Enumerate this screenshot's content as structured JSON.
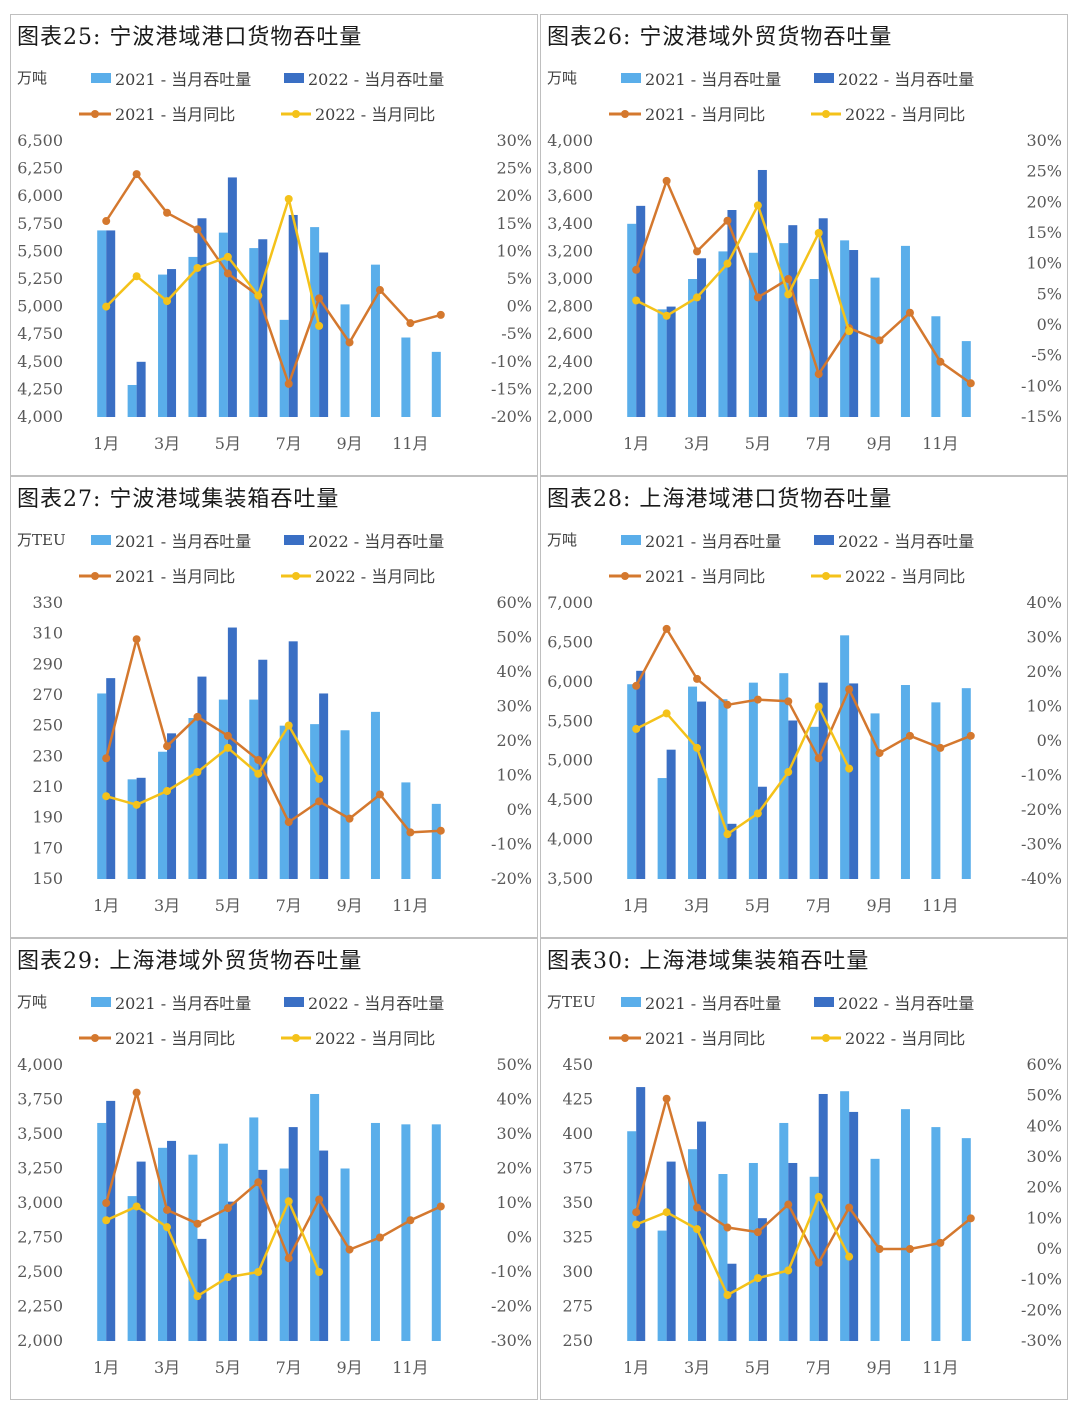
{
  "colors": {
    "bar2021": "#5aaeea",
    "bar2022": "#3a6fc4",
    "line2021": "#d4782e",
    "line2022": "#f4c21a"
  },
  "legend": {
    "b2021": "2021 - 当月吞吐量",
    "b2022": "2022 - 当月吞吐量",
    "l2021": "2021 - 当月同比",
    "l2022": "2022 - 当月同比"
  },
  "chart_data": [
    {
      "type": "bar",
      "title": "图表25: 宁波港域港口货物吞吐量",
      "unit": "万吨",
      "categories": [
        "1月",
        "2月",
        "3月",
        "4月",
        "5月",
        "6月",
        "7月",
        "8月",
        "9月",
        "10月",
        "11月",
        "12月"
      ],
      "xtick_labels": [
        "1月",
        "",
        "3月",
        "",
        "5月",
        "",
        "7月",
        "",
        "9月",
        "",
        "11月",
        ""
      ],
      "left_ylim": [
        4000,
        6500
      ],
      "left_ticks": [
        "6,500",
        "6,250",
        "6,000",
        "5,750",
        "5,500",
        "5,250",
        "5,000",
        "4,750",
        "4,500",
        "4,250",
        "4,000"
      ],
      "right_ylim": [
        -20,
        30
      ],
      "right_ticks": [
        "30%",
        "25%",
        "20%",
        "15%",
        "10%",
        "5%",
        "0%",
        "-5%",
        "-10%",
        "-15%",
        "-20%"
      ],
      "bars2021": [
        5690,
        4290,
        5290,
        5450,
        5670,
        5530,
        4880,
        5720,
        5020,
        5380,
        4720,
        4590
      ],
      "bars2022": [
        5690,
        4500,
        5340,
        5800,
        6170,
        5610,
        5830,
        5490
      ],
      "yoy2021": [
        15.5,
        24,
        17,
        14,
        6,
        2,
        -14,
        1.5,
        -6.5,
        3,
        -3,
        -1.5
      ],
      "yoy2022": [
        0,
        5.5,
        1,
        7,
        9,
        2,
        19.5,
        -3.5
      ]
    },
    {
      "type": "bar",
      "title": "图表26: 宁波港域外贸货物吞吐量",
      "unit": "万吨",
      "categories": [
        "1月",
        "2月",
        "3月",
        "4月",
        "5月",
        "6月",
        "7月",
        "8月",
        "9月",
        "10月",
        "11月",
        "12月"
      ],
      "xtick_labels": [
        "1月",
        "",
        "3月",
        "",
        "5月",
        "",
        "7月",
        "",
        "9月",
        "",
        "11月",
        ""
      ],
      "left_ylim": [
        2000,
        4000
      ],
      "left_ticks": [
        "4,000",
        "3,800",
        "3,600",
        "3,400",
        "3,200",
        "3,000",
        "2,800",
        "2,600",
        "2,400",
        "2,200",
        "2,000"
      ],
      "right_ylim": [
        -15,
        30
      ],
      "right_ticks": [
        "30%",
        "25%",
        "20%",
        "15%",
        "10%",
        "5%",
        "0%",
        "-5%",
        "-10%",
        "-15%"
      ],
      "bars2021": [
        3400,
        2780,
        3000,
        3200,
        3190,
        3260,
        3000,
        3280,
        3010,
        3240,
        2730,
        2550
      ],
      "bars2022": [
        3530,
        2800,
        3150,
        3500,
        3790,
        3390,
        3440,
        3210
      ],
      "yoy2021": [
        9,
        23.5,
        12,
        17,
        4.5,
        7.5,
        -8,
        -0.5,
        -2.5,
        2,
        -6,
        -9.5
      ],
      "yoy2022": [
        4,
        1.5,
        4.5,
        10,
        19.5,
        5,
        15,
        -1
      ]
    },
    {
      "type": "bar",
      "title": "图表27: 宁波港域集装箱吞吐量",
      "unit": "万TEU",
      "categories": [
        "1月",
        "2月",
        "3月",
        "4月",
        "5月",
        "6月",
        "7月",
        "8月",
        "9月",
        "10月",
        "11月",
        "12月"
      ],
      "xtick_labels": [
        "1月",
        "",
        "3月",
        "",
        "5月",
        "",
        "7月",
        "",
        "9月",
        "",
        "11月",
        ""
      ],
      "left_ylim": [
        150,
        330
      ],
      "left_ticks": [
        "330",
        "310",
        "290",
        "270",
        "250",
        "230",
        "210",
        "190",
        "170",
        "150"
      ],
      "right_ylim": [
        -20,
        60
      ],
      "right_ticks": [
        "60%",
        "50%",
        "40%",
        "30%",
        "20%",
        "10%",
        "0%",
        "-10%",
        "-20%"
      ],
      "bars2021": [
        271,
        215,
        233,
        255,
        267,
        267,
        250,
        251,
        247,
        259,
        213,
        199
      ],
      "bars2022": [
        281,
        216,
        245,
        282,
        314,
        293,
        305,
        271
      ],
      "yoy2021": [
        15,
        49.5,
        18.5,
        27,
        21.5,
        14.5,
        -3.5,
        2.5,
        -2.5,
        4.5,
        -6.5,
        -6
      ],
      "yoy2022": [
        4,
        1.5,
        5.5,
        11,
        18,
        10.5,
        24.5,
        9
      ]
    },
    {
      "type": "bar",
      "title": "图表28: 上海港域港口货物吞吐量",
      "unit": "万吨",
      "categories": [
        "1月",
        "2月",
        "3月",
        "4月",
        "5月",
        "6月",
        "7月",
        "8月",
        "9月",
        "10月",
        "11月",
        "12月"
      ],
      "xtick_labels": [
        "1月",
        "",
        "3月",
        "",
        "5月",
        "",
        "7月",
        "",
        "9月",
        "",
        "11月",
        ""
      ],
      "left_ylim": [
        3500,
        7000
      ],
      "left_ticks": [
        "7,000",
        "6,500",
        "6,000",
        "5,500",
        "5,000",
        "4,500",
        "4,000",
        "3,500"
      ],
      "right_ylim": [
        -40,
        40
      ],
      "right_ticks": [
        "40%",
        "30%",
        "20%",
        "10%",
        "0%",
        "-10%",
        "-20%",
        "-30%",
        "-40%"
      ],
      "bars2021": [
        5970,
        4780,
        5940,
        5780,
        5990,
        6110,
        5430,
        6590,
        5600,
        5960,
        5740,
        5920
      ],
      "bars2022": [
        6140,
        5140,
        5750,
        4200,
        4670,
        5510,
        5990,
        5980
      ],
      "yoy2021": [
        16,
        32.5,
        18,
        10.5,
        12,
        11.5,
        -5,
        15,
        -3.5,
        1.5,
        -2,
        1.5
      ],
      "yoy2022": [
        3.5,
        8,
        -2,
        -27,
        -21,
        -9,
        10,
        -8
      ]
    },
    {
      "type": "bar",
      "title": "图表29: 上海港域外贸货物吞吐量",
      "unit": "万吨",
      "categories": [
        "1月",
        "2月",
        "3月",
        "4月",
        "5月",
        "6月",
        "7月",
        "8月",
        "9月",
        "10月",
        "11月",
        "12月"
      ],
      "xtick_labels": [
        "1月",
        "",
        "3月",
        "",
        "5月",
        "",
        "7月",
        "",
        "9月",
        "",
        "11月",
        ""
      ],
      "left_ylim": [
        2000,
        4000
      ],
      "left_ticks": [
        "4,000",
        "3,750",
        "3,500",
        "3,250",
        "3,000",
        "2,750",
        "2,500",
        "2,250",
        "2,000"
      ],
      "right_ylim": [
        -30,
        50
      ],
      "right_ticks": [
        "50%",
        "40%",
        "30%",
        "20%",
        "10%",
        "0%",
        "-10%",
        "-20%",
        "-30%"
      ],
      "bars2021": [
        3580,
        3050,
        3400,
        3350,
        3430,
        3620,
        3250,
        3790,
        3250,
        3580,
        3570,
        3570
      ],
      "bars2022": [
        3740,
        3300,
        3450,
        2740,
        3010,
        3240,
        3550,
        3380
      ],
      "yoy2021": [
        10,
        42,
        8,
        4,
        8.5,
        16,
        -6,
        11,
        -3.5,
        0,
        5,
        9
      ],
      "yoy2022": [
        5,
        9,
        3,
        -17,
        -11.5,
        -10,
        10.5,
        -10
      ]
    },
    {
      "type": "bar",
      "title": "图表30: 上海港域集装箱吞吐量",
      "unit": "万TEU",
      "categories": [
        "1月",
        "2月",
        "3月",
        "4月",
        "5月",
        "6月",
        "7月",
        "8月",
        "9月",
        "10月",
        "11月",
        "12月"
      ],
      "xtick_labels": [
        "1月",
        "",
        "3月",
        "",
        "5月",
        "",
        "7月",
        "",
        "9月",
        "",
        "11月",
        ""
      ],
      "left_ylim": [
        250,
        450
      ],
      "left_ticks": [
        "450",
        "425",
        "400",
        "375",
        "350",
        "325",
        "300",
        "275",
        "250"
      ],
      "right_ylim": [
        -30,
        60
      ],
      "right_ticks": [
        "60%",
        "50%",
        "40%",
        "30%",
        "20%",
        "10%",
        "0%",
        "-10%",
        "-20%",
        "-30%"
      ],
      "bars2021": [
        402,
        330,
        389,
        371,
        379,
        408,
        369,
        431,
        382,
        418,
        405,
        397
      ],
      "bars2022": [
        434,
        380,
        409,
        306,
        339,
        379,
        429,
        416
      ],
      "yoy2021": [
        12,
        49,
        13.5,
        7,
        5.5,
        14.5,
        -4.5,
        13.5,
        0,
        0,
        2,
        10
      ],
      "yoy2022": [
        8,
        12,
        6.5,
        -15,
        -9.5,
        -7,
        17,
        -2.5
      ]
    }
  ]
}
